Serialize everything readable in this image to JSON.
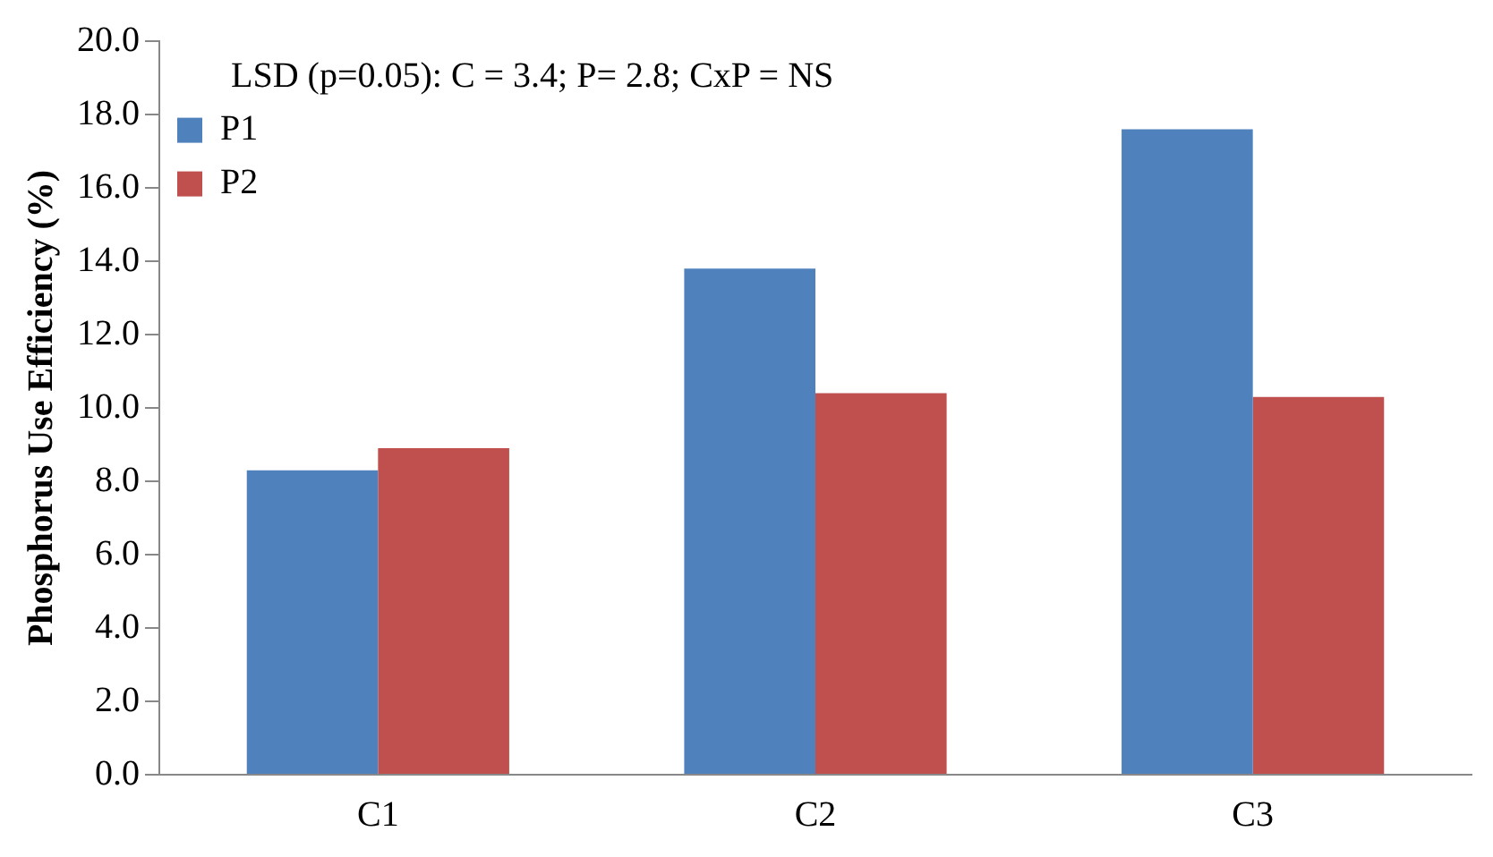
{
  "chart_data": {
    "type": "bar",
    "ylabel": "Phosphorus Use Efficiency (%)",
    "categories": [
      "C1",
      "C2",
      "C3"
    ],
    "series": [
      {
        "name": "P1",
        "color": "#4f81bd",
        "values": [
          8.3,
          13.8,
          17.6
        ]
      },
      {
        "name": "P2",
        "color": "#c0504d",
        "values": [
          8.9,
          10.4,
          10.3
        ]
      }
    ],
    "ylim": [
      0,
      20
    ],
    "yticks": [
      {
        "value": 0,
        "label": "0.0"
      },
      {
        "value": 2,
        "label": "2.0"
      },
      {
        "value": 4,
        "label": "4.0"
      },
      {
        "value": 6,
        "label": "6.0"
      },
      {
        "value": 8,
        "label": "8.0"
      },
      {
        "value": 10,
        "label": "10.0"
      },
      {
        "value": 12,
        "label": "12.0"
      },
      {
        "value": 14,
        "label": "14.0"
      },
      {
        "value": 16,
        "label": "16.0"
      },
      {
        "value": 18,
        "label": "18.0"
      },
      {
        "value": 20,
        "label": "20.0"
      }
    ],
    "annotations": [
      "LSD (p=0.05): C = 3.4; P= 2.8; CxP = NS"
    ],
    "grid": false,
    "legend": "top left"
  }
}
